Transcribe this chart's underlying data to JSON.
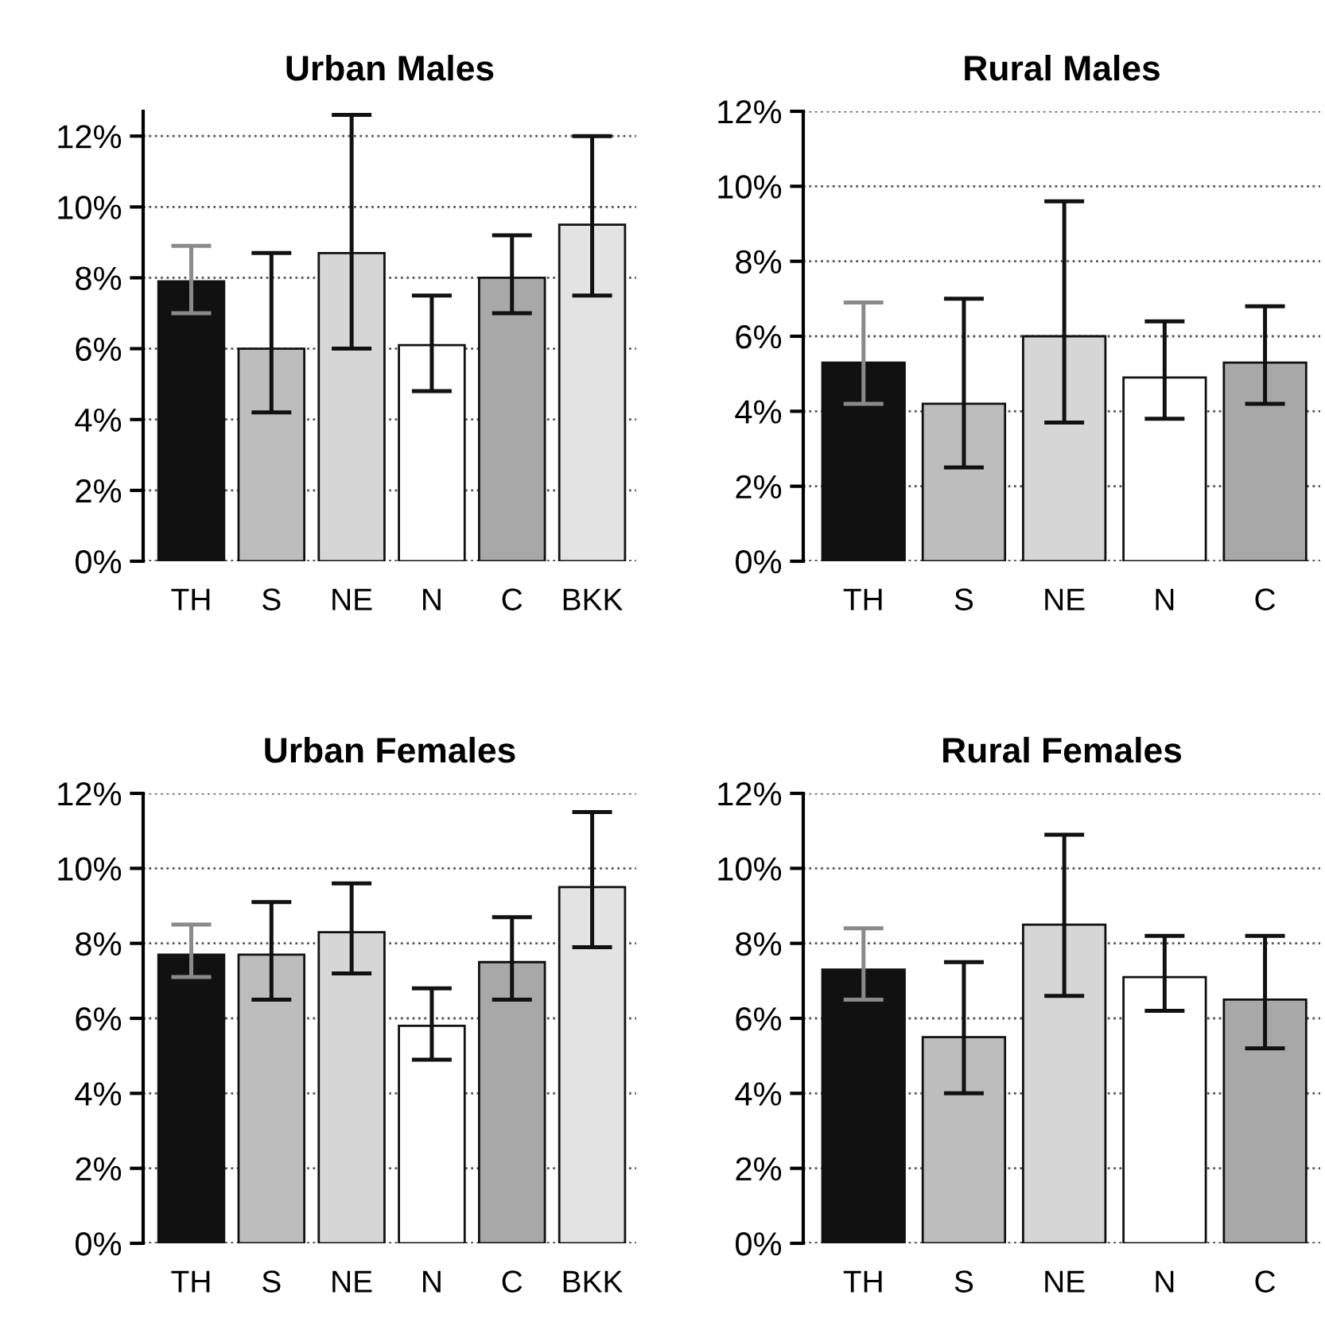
{
  "chart_data": [
    {
      "type": "bar",
      "title": "Urban Males",
      "categories": [
        "TH",
        "S",
        "NE",
        "N",
        "C",
        "BKK"
      ],
      "values": [
        7.9,
        6.0,
        8.7,
        6.1,
        8.0,
        9.5
      ],
      "colors": [
        "#111111",
        "#bdbdbd",
        "#d6d6d6",
        "#ffffff",
        "#a8a8a8",
        "#e3e3e3"
      ],
      "errors": [
        [
          7.0,
          8.9
        ],
        [
          4.2,
          8.7
        ],
        [
          6.0,
          12.6
        ],
        [
          4.8,
          7.5
        ],
        [
          7.0,
          9.2
        ],
        [
          7.5,
          12.0
        ]
      ],
      "ylim": [
        0,
        12.7
      ],
      "yticks": [
        {
          "value": 0,
          "label": "0%"
        },
        {
          "value": 2,
          "label": "2%"
        },
        {
          "value": 4,
          "label": "4%"
        },
        {
          "value": 6,
          "label": "6%"
        },
        {
          "value": 8,
          "label": "8%"
        },
        {
          "value": 10,
          "label": "10%"
        },
        {
          "value": 12,
          "label": "12%"
        }
      ],
      "grid": "y"
    },
    {
      "type": "bar",
      "title": "Rural Males",
      "categories": [
        "TH",
        "S",
        "NE",
        "N",
        "C"
      ],
      "values": [
        5.3,
        4.2,
        6.0,
        4.9,
        5.3
      ],
      "colors": [
        "#111111",
        "#bdbdbd",
        "#d6d6d6",
        "#ffffff",
        "#a8a8a8"
      ],
      "errors": [
        [
          4.2,
          6.9
        ],
        [
          2.5,
          7.0
        ],
        [
          3.7,
          9.6
        ],
        [
          3.8,
          6.4
        ],
        [
          4.2,
          6.8
        ]
      ],
      "ylim": [
        0,
        12
      ],
      "yticks": [
        {
          "value": 0,
          "label": "0%"
        },
        {
          "value": 2,
          "label": "2%"
        },
        {
          "value": 4,
          "label": "4%"
        },
        {
          "value": 6,
          "label": "6%"
        },
        {
          "value": 8,
          "label": "8%"
        },
        {
          "value": 10,
          "label": "10%"
        },
        {
          "value": 12,
          "label": "12%"
        }
      ],
      "grid": "y"
    },
    {
      "type": "bar",
      "title": "Urban Females",
      "categories": [
        "TH",
        "S",
        "NE",
        "N",
        "C",
        "BKK"
      ],
      "values": [
        7.7,
        7.7,
        8.3,
        5.8,
        7.5,
        9.5
      ],
      "colors": [
        "#111111",
        "#bdbdbd",
        "#d6d6d6",
        "#ffffff",
        "#a8a8a8",
        "#e3e3e3"
      ],
      "errors": [
        [
          7.1,
          8.5
        ],
        [
          6.5,
          9.1
        ],
        [
          7.2,
          9.6
        ],
        [
          4.9,
          6.8
        ],
        [
          6.5,
          8.7
        ],
        [
          7.9,
          11.5
        ]
      ],
      "ylim": [
        0,
        12
      ],
      "yticks": [
        {
          "value": 0,
          "label": "0%"
        },
        {
          "value": 2,
          "label": "2%"
        },
        {
          "value": 4,
          "label": "4%"
        },
        {
          "value": 6,
          "label": "6%"
        },
        {
          "value": 8,
          "label": "8%"
        },
        {
          "value": 10,
          "label": "10%"
        },
        {
          "value": 12,
          "label": "12%"
        }
      ],
      "grid": "y"
    },
    {
      "type": "bar",
      "title": "Rural Females",
      "categories": [
        "TH",
        "S",
        "NE",
        "N",
        "C"
      ],
      "values": [
        7.3,
        5.5,
        8.5,
        7.1,
        6.5
      ],
      "colors": [
        "#111111",
        "#bdbdbd",
        "#d6d6d6",
        "#ffffff",
        "#a8a8a8"
      ],
      "errors": [
        [
          6.5,
          8.4
        ],
        [
          4.0,
          7.5
        ],
        [
          6.6,
          10.9
        ],
        [
          6.2,
          8.2
        ],
        [
          5.2,
          8.2
        ]
      ],
      "ylim": [
        0,
        12
      ],
      "yticks": [
        {
          "value": 0,
          "label": "0%"
        },
        {
          "value": 2,
          "label": "2%"
        },
        {
          "value": 4,
          "label": "4%"
        },
        {
          "value": 6,
          "label": "6%"
        },
        {
          "value": 8,
          "label": "8%"
        },
        {
          "value": 10,
          "label": "10%"
        },
        {
          "value": 12,
          "label": "12%"
        }
      ],
      "grid": "y"
    }
  ]
}
